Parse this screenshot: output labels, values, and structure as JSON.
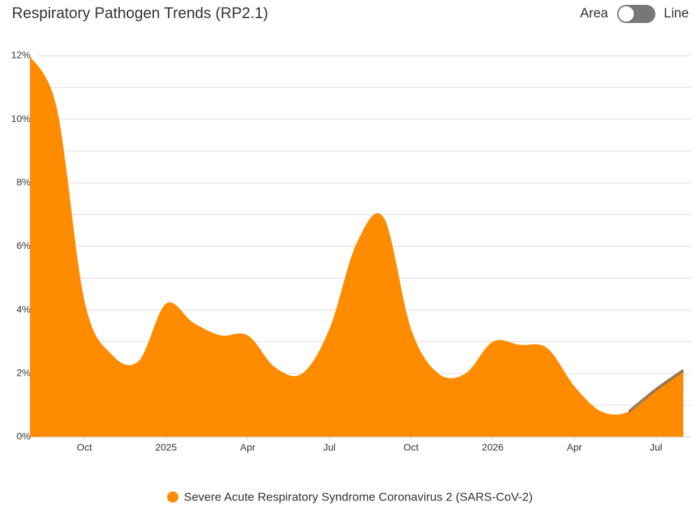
{
  "title": "Respiratory Pathogen Trends (RP2.1)",
  "controls": {
    "left_label": "Area",
    "right_label": "Line",
    "state": "left"
  },
  "chart_data": {
    "type": "area",
    "x": [
      "2024-08",
      "2024-09",
      "2024-10",
      "2024-11",
      "2024-12",
      "2025-01",
      "2025-02",
      "2025-03",
      "2025-04",
      "2025-05",
      "2025-06",
      "2025-07",
      "2025-08",
      "2025-09",
      "2025-10",
      "2025-11",
      "2025-12",
      "2026-01",
      "2026-02",
      "2026-03",
      "2026-04",
      "2026-05",
      "2026-06",
      "2026-07",
      "2026-08"
    ],
    "series": [
      {
        "name": "Severe Acute Respiratory Syndrome Coronavirus 2 (SARS-CoV-2)",
        "color": "#ff8c00",
        "values": [
          12.0,
          10.3,
          4.3,
          2.6,
          2.4,
          4.2,
          3.6,
          3.2,
          3.2,
          2.2,
          2.0,
          3.4,
          6.1,
          6.9,
          3.4,
          2.0,
          2.0,
          3.0,
          2.9,
          2.8,
          1.6,
          0.8,
          0.8,
          1.5,
          2.1
        ]
      }
    ],
    "projection": {
      "from_index": 22,
      "color": "#8a6a4a"
    },
    "xlim": [
      "2024-08",
      "2026-08"
    ],
    "xticks": [
      {
        "value": "2024-10",
        "label": "Oct"
      },
      {
        "value": "2025-01",
        "label": "2025"
      },
      {
        "value": "2025-04",
        "label": "Apr"
      },
      {
        "value": "2025-07",
        "label": "Jul"
      },
      {
        "value": "2025-10",
        "label": "Oct"
      },
      {
        "value": "2026-01",
        "label": "2026"
      },
      {
        "value": "2026-04",
        "label": "Apr"
      },
      {
        "value": "2026-07",
        "label": "Jul"
      }
    ],
    "ylim": [
      0,
      12
    ],
    "yticks": [
      {
        "value": 0,
        "label": "0%"
      },
      {
        "value": 2,
        "label": "2%"
      },
      {
        "value": 4,
        "label": "4%"
      },
      {
        "value": 6,
        "label": "6%"
      },
      {
        "value": 8,
        "label": "8%"
      },
      {
        "value": 10,
        "label": "10%"
      },
      {
        "value": 12,
        "label": "12%"
      }
    ],
    "minor_grid": [
      1,
      3,
      5,
      7,
      9,
      11
    ],
    "grid": true,
    "legend": "bottom"
  }
}
